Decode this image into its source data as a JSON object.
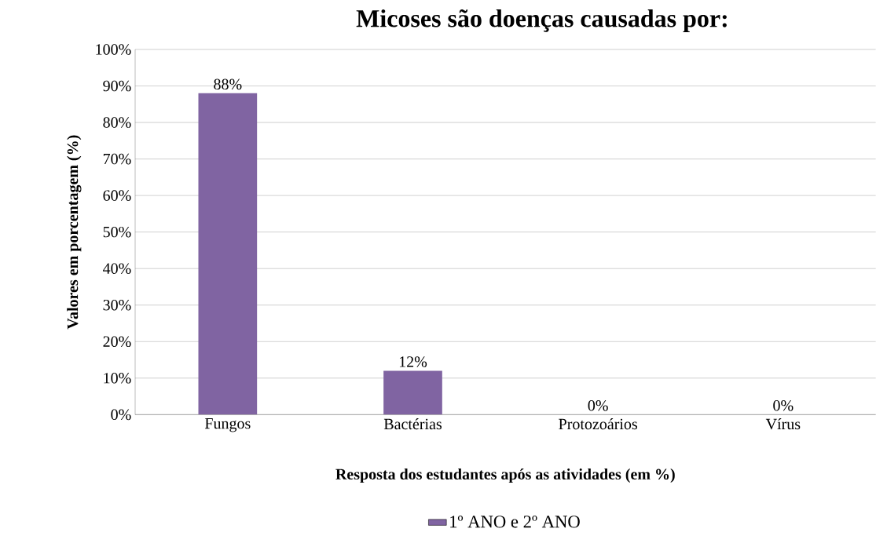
{
  "chart_data": {
    "type": "bar",
    "title": "Micoses são doenças causadas por:",
    "xlabel": "Resposta dos estudantes após as atividades (em %)",
    "ylabel": "Valores em  porcentagem   (%)",
    "categories": [
      "Fungos",
      "Bactérias",
      "Protozoários",
      "Vírus"
    ],
    "series": [
      {
        "name": "1º ANO e 2º ANO",
        "color": "#8064a2",
        "values": [
          88,
          12,
          0,
          0
        ],
        "value_labels": [
          "88%",
          "12%",
          "0%",
          "0%"
        ]
      }
    ],
    "ylim": [
      0,
      100
    ],
    "yticks": [
      {
        "value": 0,
        "label": "0%"
      },
      {
        "value": 10,
        "label": "10%"
      },
      {
        "value": 20,
        "label": "20%"
      },
      {
        "value": 30,
        "label": "30%"
      },
      {
        "value": 40,
        "label": "40%"
      },
      {
        "value": 50,
        "label": "50%"
      },
      {
        "value": 60,
        "label": "60%"
      },
      {
        "value": 70,
        "label": "70%"
      },
      {
        "value": 80,
        "label": "80%"
      },
      {
        "value": 90,
        "label": "90%"
      },
      {
        "value": 100,
        "label": "100%"
      }
    ],
    "grid": "y",
    "legend": "bottom"
  }
}
